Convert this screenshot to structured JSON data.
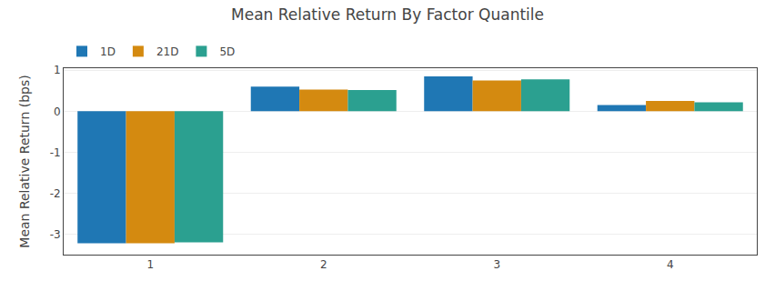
{
  "chart_data": {
    "type": "bar",
    "title": "Mean Relative Return By Factor Quantile",
    "ylabel": "Mean Relative Return (bps)",
    "categories": [
      "1",
      "2",
      "3",
      "4"
    ],
    "series": [
      {
        "name": "1D",
        "color": "#1f77b4",
        "values": [
          -3.22,
          0.6,
          0.85,
          0.15
        ]
      },
      {
        "name": "21D",
        "color": "#d48a10",
        "values": [
          -3.22,
          0.53,
          0.75,
          0.25
        ]
      },
      {
        "name": "5D",
        "color": "#2ba090",
        "values": [
          -3.2,
          0.52,
          0.78,
          0.22
        ]
      }
    ],
    "ylim": [
      -3.5,
      1.05
    ],
    "yticks": [
      1,
      0,
      -1,
      -2,
      -3
    ],
    "grid": true,
    "legend": "upper left"
  }
}
